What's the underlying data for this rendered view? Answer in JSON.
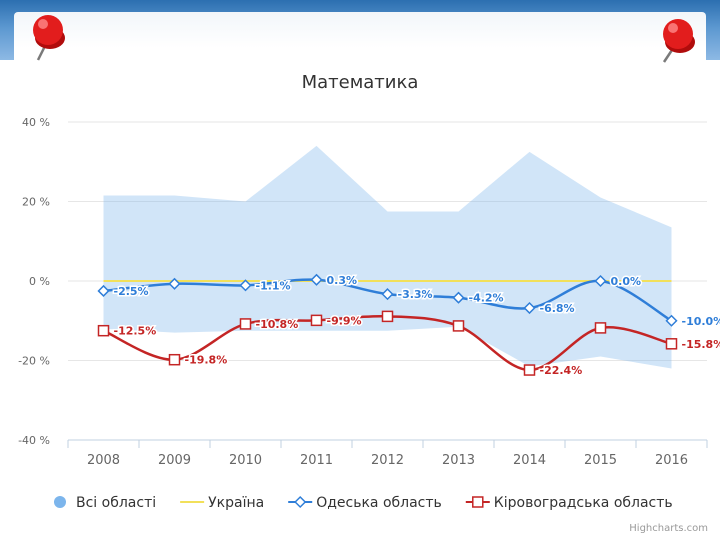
{
  "chart_data": {
    "type": "line",
    "title": "Математика",
    "categories": [
      "2008",
      "2009",
      "2010",
      "2011",
      "2012",
      "2013",
      "2014",
      "2015",
      "2016"
    ],
    "ylim": [
      -40,
      40
    ],
    "y_ticks": [
      40,
      20,
      0,
      -20,
      -40
    ],
    "y_tick_labels": [
      "40 %",
      "20 %",
      "0 %",
      "-20 %",
      "-40 %"
    ],
    "grid": true,
    "legend_position": "bottom",
    "area_range": {
      "name": "Всі області",
      "color": "#7cb5ec",
      "high": [
        21.5,
        21.5,
        20,
        34,
        17.5,
        17.5,
        32.5,
        21,
        13.5
      ],
      "low": [
        -12,
        -13,
        -12.5,
        -12.5,
        -12.5,
        -11.5,
        -21.5,
        -19,
        -22
      ]
    },
    "series": [
      {
        "name": "Україна",
        "color": "#f2e05a",
        "marker": "none",
        "values": [
          0,
          0,
          0,
          0,
          0,
          0,
          0,
          0,
          0
        ],
        "labels": []
      },
      {
        "name": "Одеська область",
        "color": "#2f7ed8",
        "marker": "diamond",
        "values": [
          -2.5,
          -0.7,
          -1.1,
          0.3,
          -3.3,
          -4.2,
          -6.8,
          0.0,
          -10.0
        ],
        "labels": [
          "-2.5%",
          "",
          "-1.1%",
          "0.3%",
          "-3.3%",
          "-4.2%",
          "-6.8%",
          "0.0%",
          "-10.0%"
        ]
      },
      {
        "name": "Кіровоградська область",
        "color": "#c42525",
        "marker": "square",
        "values": [
          -12.5,
          -19.8,
          -10.8,
          -9.9,
          -8.9,
          -11.3,
          -22.4,
          -11.8,
          -15.8
        ],
        "labels": [
          "-12.5%",
          "-19.8%",
          "-10.8%",
          "-9.9%",
          "",
          "",
          "-22.4%",
          "",
          "-15.8%"
        ]
      }
    ]
  },
  "credits": "Highcharts.com"
}
